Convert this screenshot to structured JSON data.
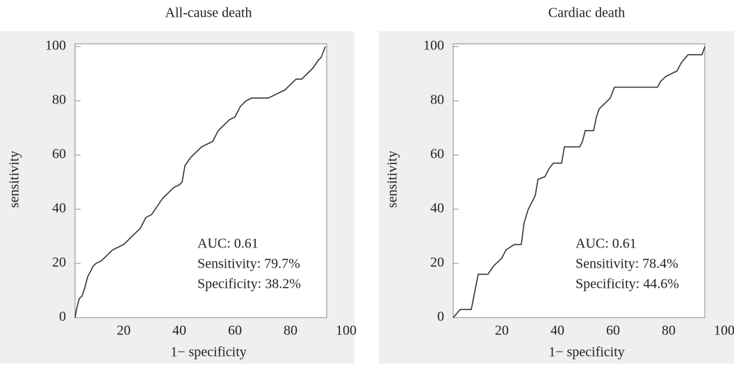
{
  "chart_data": [
    {
      "type": "line",
      "title": "All-cause death",
      "xlabel": "1− specificity",
      "ylabel": "sensitivity",
      "xlim": [
        0,
        100
      ],
      "ylim": [
        0,
        100
      ],
      "xticks": [
        20,
        40,
        60,
        80,
        100
      ],
      "yticks": [
        0,
        20,
        40,
        60,
        80,
        100
      ],
      "color": "#333333",
      "x": [
        2.5,
        3,
        4,
        5,
        6,
        7,
        8,
        9,
        10,
        12,
        14,
        16,
        18,
        20,
        22,
        24,
        26,
        27,
        28,
        30,
        32,
        34,
        36,
        38,
        40,
        41,
        42,
        44,
        46,
        48,
        50,
        52,
        54,
        56,
        58,
        60,
        62,
        64,
        66,
        68,
        70,
        72,
        74,
        76,
        78,
        80,
        82,
        84,
        86,
        88,
        90,
        91,
        92.5
      ],
      "values": [
        0,
        3,
        7,
        8,
        11,
        15,
        17,
        19,
        20,
        21,
        23,
        25,
        26,
        27,
        29,
        31,
        33,
        35,
        37,
        38,
        41,
        44,
        46,
        48,
        49,
        50,
        56,
        59,
        61,
        63,
        64,
        65,
        69,
        71,
        73,
        74,
        78,
        80,
        81,
        81,
        81,
        81,
        82,
        83,
        84,
        86,
        88,
        88,
        90,
        92,
        95,
        96,
        100
      ],
      "annotations": [
        "AUC: 0.61",
        "Sensitivity: 79.7%",
        "Specificity: 38.2%"
      ]
    },
    {
      "type": "line",
      "title": "Cardiac death",
      "xlabel": "1− specificity",
      "ylabel": "sensitivity",
      "xlim": [
        0,
        100
      ],
      "ylim": [
        0,
        100
      ],
      "xticks": [
        20,
        40,
        60,
        80,
        100
      ],
      "yticks": [
        0,
        20,
        40,
        60,
        80,
        100
      ],
      "color": "#333333",
      "x": [
        2.5,
        5,
        9,
        11.5,
        15,
        17,
        20,
        21.5,
        24.5,
        27,
        28,
        29.5,
        32,
        33,
        35.5,
        37,
        38.5,
        41.5,
        42.5,
        48,
        49,
        50,
        53,
        54,
        55,
        57,
        59,
        60.5,
        76,
        77,
        79,
        83,
        84.5,
        87,
        92,
        93
      ],
      "values": [
        0,
        3,
        3,
        16,
        16,
        19,
        22,
        25,
        27,
        27,
        35,
        40,
        45,
        51,
        52,
        55,
        57,
        57,
        63,
        63,
        65,
        69,
        69,
        74,
        77,
        79,
        81,
        85,
        85,
        87,
        89,
        91,
        94,
        97,
        97,
        100
      ],
      "annotations": [
        "AUC: 0.61",
        "Sensitivity: 78.4%",
        "Specificity: 44.6%"
      ]
    }
  ]
}
